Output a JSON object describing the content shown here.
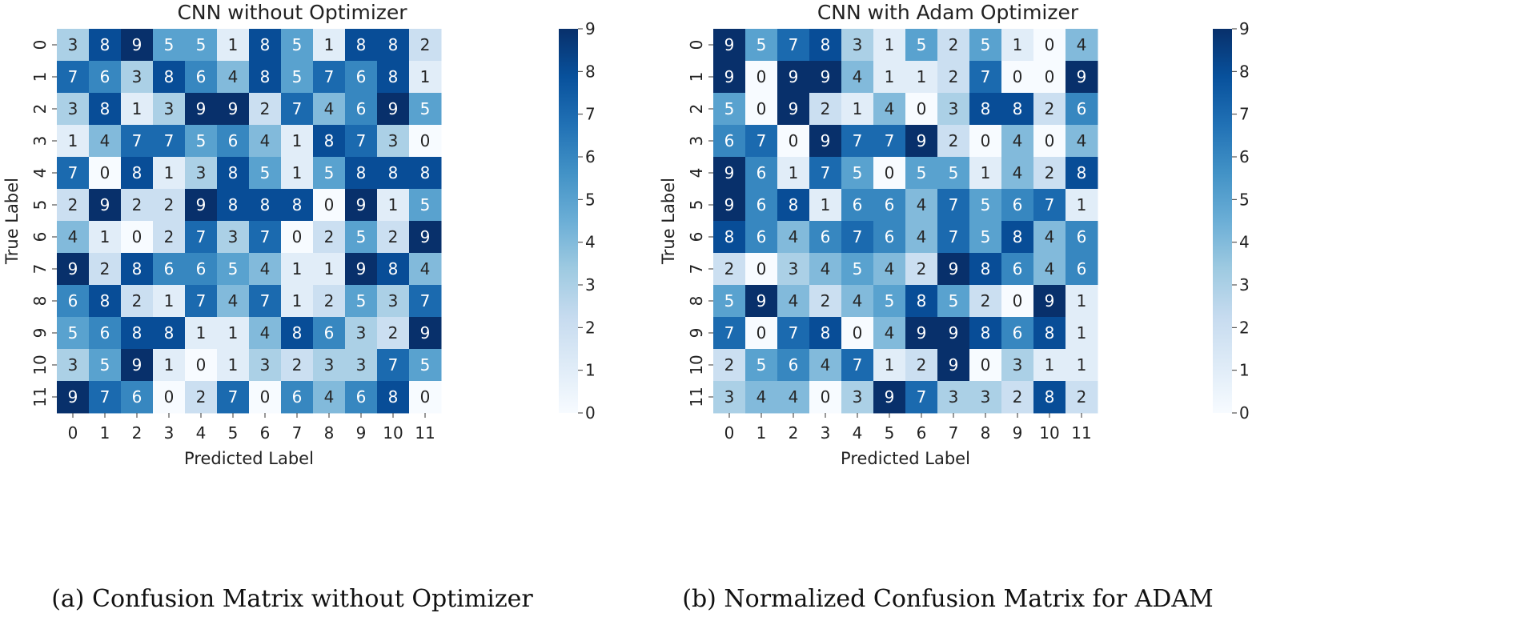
{
  "chart_data": [
    {
      "type": "heatmap",
      "title": "CNN without Optimizer",
      "xlabel": "Predicted Label",
      "ylabel": "True Label",
      "caption": "(a) Confusion Matrix without Optimizer",
      "x_tick_labels": [
        "0",
        "1",
        "2",
        "3",
        "4",
        "5",
        "6",
        "7",
        "8",
        "9",
        "10",
        "11"
      ],
      "y_tick_labels": [
        "0",
        "1",
        "2",
        "3",
        "4",
        "5",
        "6",
        "7",
        "8",
        "9",
        "10",
        "11"
      ],
      "colorbar_ticks": [
        "0",
        "1",
        "2",
        "3",
        "4",
        "5",
        "6",
        "7",
        "8",
        "9"
      ],
      "value_range": [
        0,
        9
      ],
      "colormap": "Blues",
      "matrix": [
        [
          3,
          8,
          9,
          5,
          5,
          1,
          8,
          5,
          1,
          8,
          8,
          2
        ],
        [
          7,
          6,
          3,
          8,
          6,
          4,
          8,
          5,
          7,
          6,
          8,
          1
        ],
        [
          3,
          8,
          1,
          3,
          9,
          9,
          2,
          7,
          4,
          6,
          9,
          5
        ],
        [
          1,
          4,
          7,
          7,
          5,
          6,
          4,
          1,
          8,
          7,
          3,
          0
        ],
        [
          7,
          0,
          8,
          1,
          3,
          8,
          5,
          1,
          5,
          8,
          8,
          8
        ],
        [
          2,
          9,
          2,
          2,
          9,
          8,
          8,
          8,
          0,
          9,
          1,
          5
        ],
        [
          4,
          1,
          0,
          2,
          7,
          3,
          7,
          0,
          2,
          5,
          2,
          9
        ],
        [
          9,
          2,
          8,
          6,
          6,
          5,
          4,
          1,
          1,
          9,
          8,
          4
        ],
        [
          6,
          8,
          2,
          1,
          7,
          4,
          7,
          1,
          2,
          5,
          3,
          7
        ],
        [
          5,
          6,
          8,
          8,
          1,
          1,
          4,
          8,
          6,
          3,
          2,
          9
        ],
        [
          3,
          5,
          9,
          1,
          0,
          1,
          3,
          2,
          3,
          3,
          7,
          5
        ],
        [
          9,
          7,
          6,
          0,
          2,
          7,
          0,
          6,
          4,
          6,
          8,
          0
        ]
      ]
    },
    {
      "type": "heatmap",
      "title": "CNN with Adam Optimizer",
      "xlabel": "Predicted Label",
      "ylabel": "True Label",
      "caption": "(b) Normalized Confusion Matrix for ADAM",
      "x_tick_labels": [
        "0",
        "1",
        "2",
        "3",
        "4",
        "5",
        "6",
        "7",
        "8",
        "9",
        "10",
        "11"
      ],
      "y_tick_labels": [
        "0",
        "1",
        "2",
        "3",
        "4",
        "5",
        "6",
        "7",
        "8",
        "9",
        "10",
        "11"
      ],
      "colorbar_ticks": [
        "0",
        "1",
        "2",
        "3",
        "4",
        "5",
        "6",
        "7",
        "8",
        "9"
      ],
      "value_range": [
        0,
        9
      ],
      "colormap": "Blues",
      "matrix": [
        [
          9,
          5,
          7,
          8,
          3,
          1,
          5,
          2,
          5,
          1,
          0,
          4
        ],
        [
          9,
          0,
          9,
          9,
          4,
          1,
          1,
          2,
          7,
          0,
          0,
          9
        ],
        [
          5,
          0,
          9,
          2,
          1,
          4,
          0,
          3,
          8,
          8,
          2,
          6
        ],
        [
          6,
          7,
          0,
          9,
          7,
          7,
          9,
          2,
          0,
          4,
          0,
          4
        ],
        [
          9,
          6,
          1,
          7,
          5,
          0,
          5,
          5,
          1,
          4,
          2,
          8
        ],
        [
          9,
          6,
          8,
          1,
          6,
          6,
          4,
          7,
          5,
          6,
          7,
          1
        ],
        [
          8,
          6,
          4,
          6,
          7,
          6,
          4,
          7,
          5,
          8,
          4,
          6
        ],
        [
          2,
          0,
          3,
          4,
          5,
          4,
          2,
          9,
          8,
          6,
          4,
          6
        ],
        [
          5,
          9,
          4,
          2,
          4,
          5,
          8,
          5,
          2,
          0,
          9,
          1
        ],
        [
          7,
          0,
          7,
          8,
          0,
          4,
          9,
          9,
          8,
          6,
          8,
          1
        ],
        [
          2,
          5,
          6,
          4,
          7,
          1,
          2,
          9,
          0,
          3,
          1,
          1
        ],
        [
          3,
          4,
          4,
          0,
          3,
          9,
          7,
          3,
          3,
          2,
          8,
          2
        ]
      ]
    }
  ]
}
